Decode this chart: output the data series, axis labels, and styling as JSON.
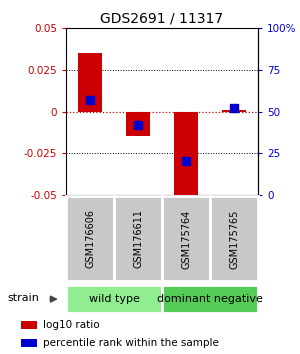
{
  "title": "GDS2691 / 11317",
  "samples": [
    "GSM176606",
    "GSM176611",
    "GSM175764",
    "GSM175765"
  ],
  "log10_ratio": [
    0.035,
    -0.015,
    -0.055,
    0.001
  ],
  "percentile_rank": [
    57,
    42,
    20,
    52
  ],
  "ylim_left": [
    -0.05,
    0.05
  ],
  "ylim_right": [
    0,
    100
  ],
  "yticks_left": [
    -0.05,
    -0.025,
    0,
    0.025,
    0.05
  ],
  "yticks_right": [
    0,
    25,
    50,
    75,
    100
  ],
  "bar_color": "#CC0000",
  "dot_color": "#0000CC",
  "bar_width": 0.5,
  "dot_size": 40,
  "grid_color": "black",
  "grid_style": "dotted",
  "zero_line_color": "#CC0000",
  "zero_line_style": "dotted",
  "left_axis_color": "#CC0000",
  "right_axis_color": "#0000CC",
  "sample_box_color": "#C8C8C8",
  "sample_box_edge": "#888888",
  "group_wild_color": "#90EE90",
  "group_dom_color": "#55CC55",
  "legend_red_label": "log10 ratio",
  "legend_blue_label": "percentile rank within the sample",
  "strain_label": "strain",
  "background_color": "#FFFFFF",
  "title_fontsize": 10,
  "tick_fontsize": 7.5,
  "sample_fontsize": 7,
  "group_fontsize": 8,
  "legend_fontsize": 7.5
}
